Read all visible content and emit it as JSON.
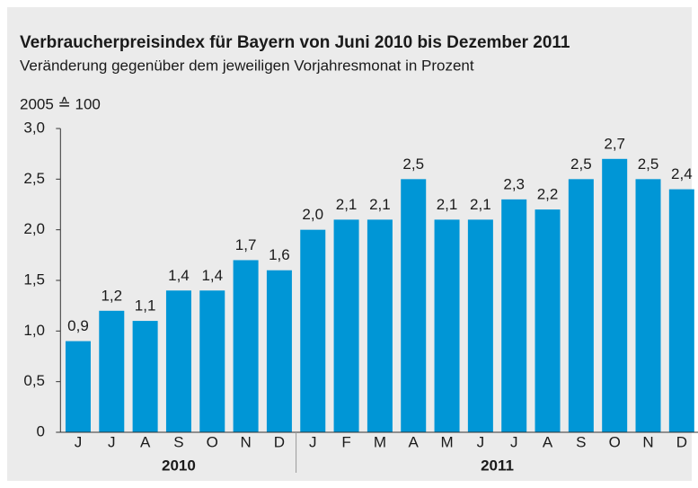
{
  "chart_data": {
    "type": "bar",
    "title": "Verbraucherpreisindex für Bayern von Juni 2010 bis Dezember 2011",
    "subtitle": "Veränderung gegenüber dem jeweiligen Vorjahresmonat in Prozent",
    "axis_note": "2005 ≙ 100",
    "categories": [
      "J",
      "J",
      "A",
      "S",
      "O",
      "N",
      "D",
      "J",
      "F",
      "M",
      "A",
      "M",
      "J",
      "J",
      "A",
      "S",
      "O",
      "N",
      "D"
    ],
    "category_groups": [
      {
        "label": "2010",
        "span": 7
      },
      {
        "label": "2011",
        "span": 12
      }
    ],
    "values": [
      0.9,
      1.2,
      1.1,
      1.4,
      1.4,
      1.7,
      1.6,
      2.0,
      2.1,
      2.1,
      2.5,
      2.1,
      2.1,
      2.3,
      2.2,
      2.5,
      2.7,
      2.5,
      2.4
    ],
    "value_labels": [
      "0,9",
      "1,2",
      "1,1",
      "1,4",
      "1,4",
      "1,7",
      "1,6",
      "2,0",
      "2,1",
      "2,1",
      "2,5",
      "2,1",
      "2,1",
      "2,3",
      "2,2",
      "2,5",
      "2,7",
      "2,5",
      "2,4"
    ],
    "color": "#0096d6",
    "ylim": [
      0,
      3.0
    ],
    "yticks": [
      0,
      {
        "value": 0.5,
        "label": "0,5"
      },
      {
        "value": 1.0,
        "label": "1,0"
      },
      {
        "value": 1.5,
        "label": "1,5"
      },
      {
        "value": 2.0,
        "label": "2,0"
      },
      {
        "value": 2.5,
        "label": "2,5"
      },
      {
        "value": 3.0,
        "label": "3,0"
      }
    ],
    "grid": false
  }
}
